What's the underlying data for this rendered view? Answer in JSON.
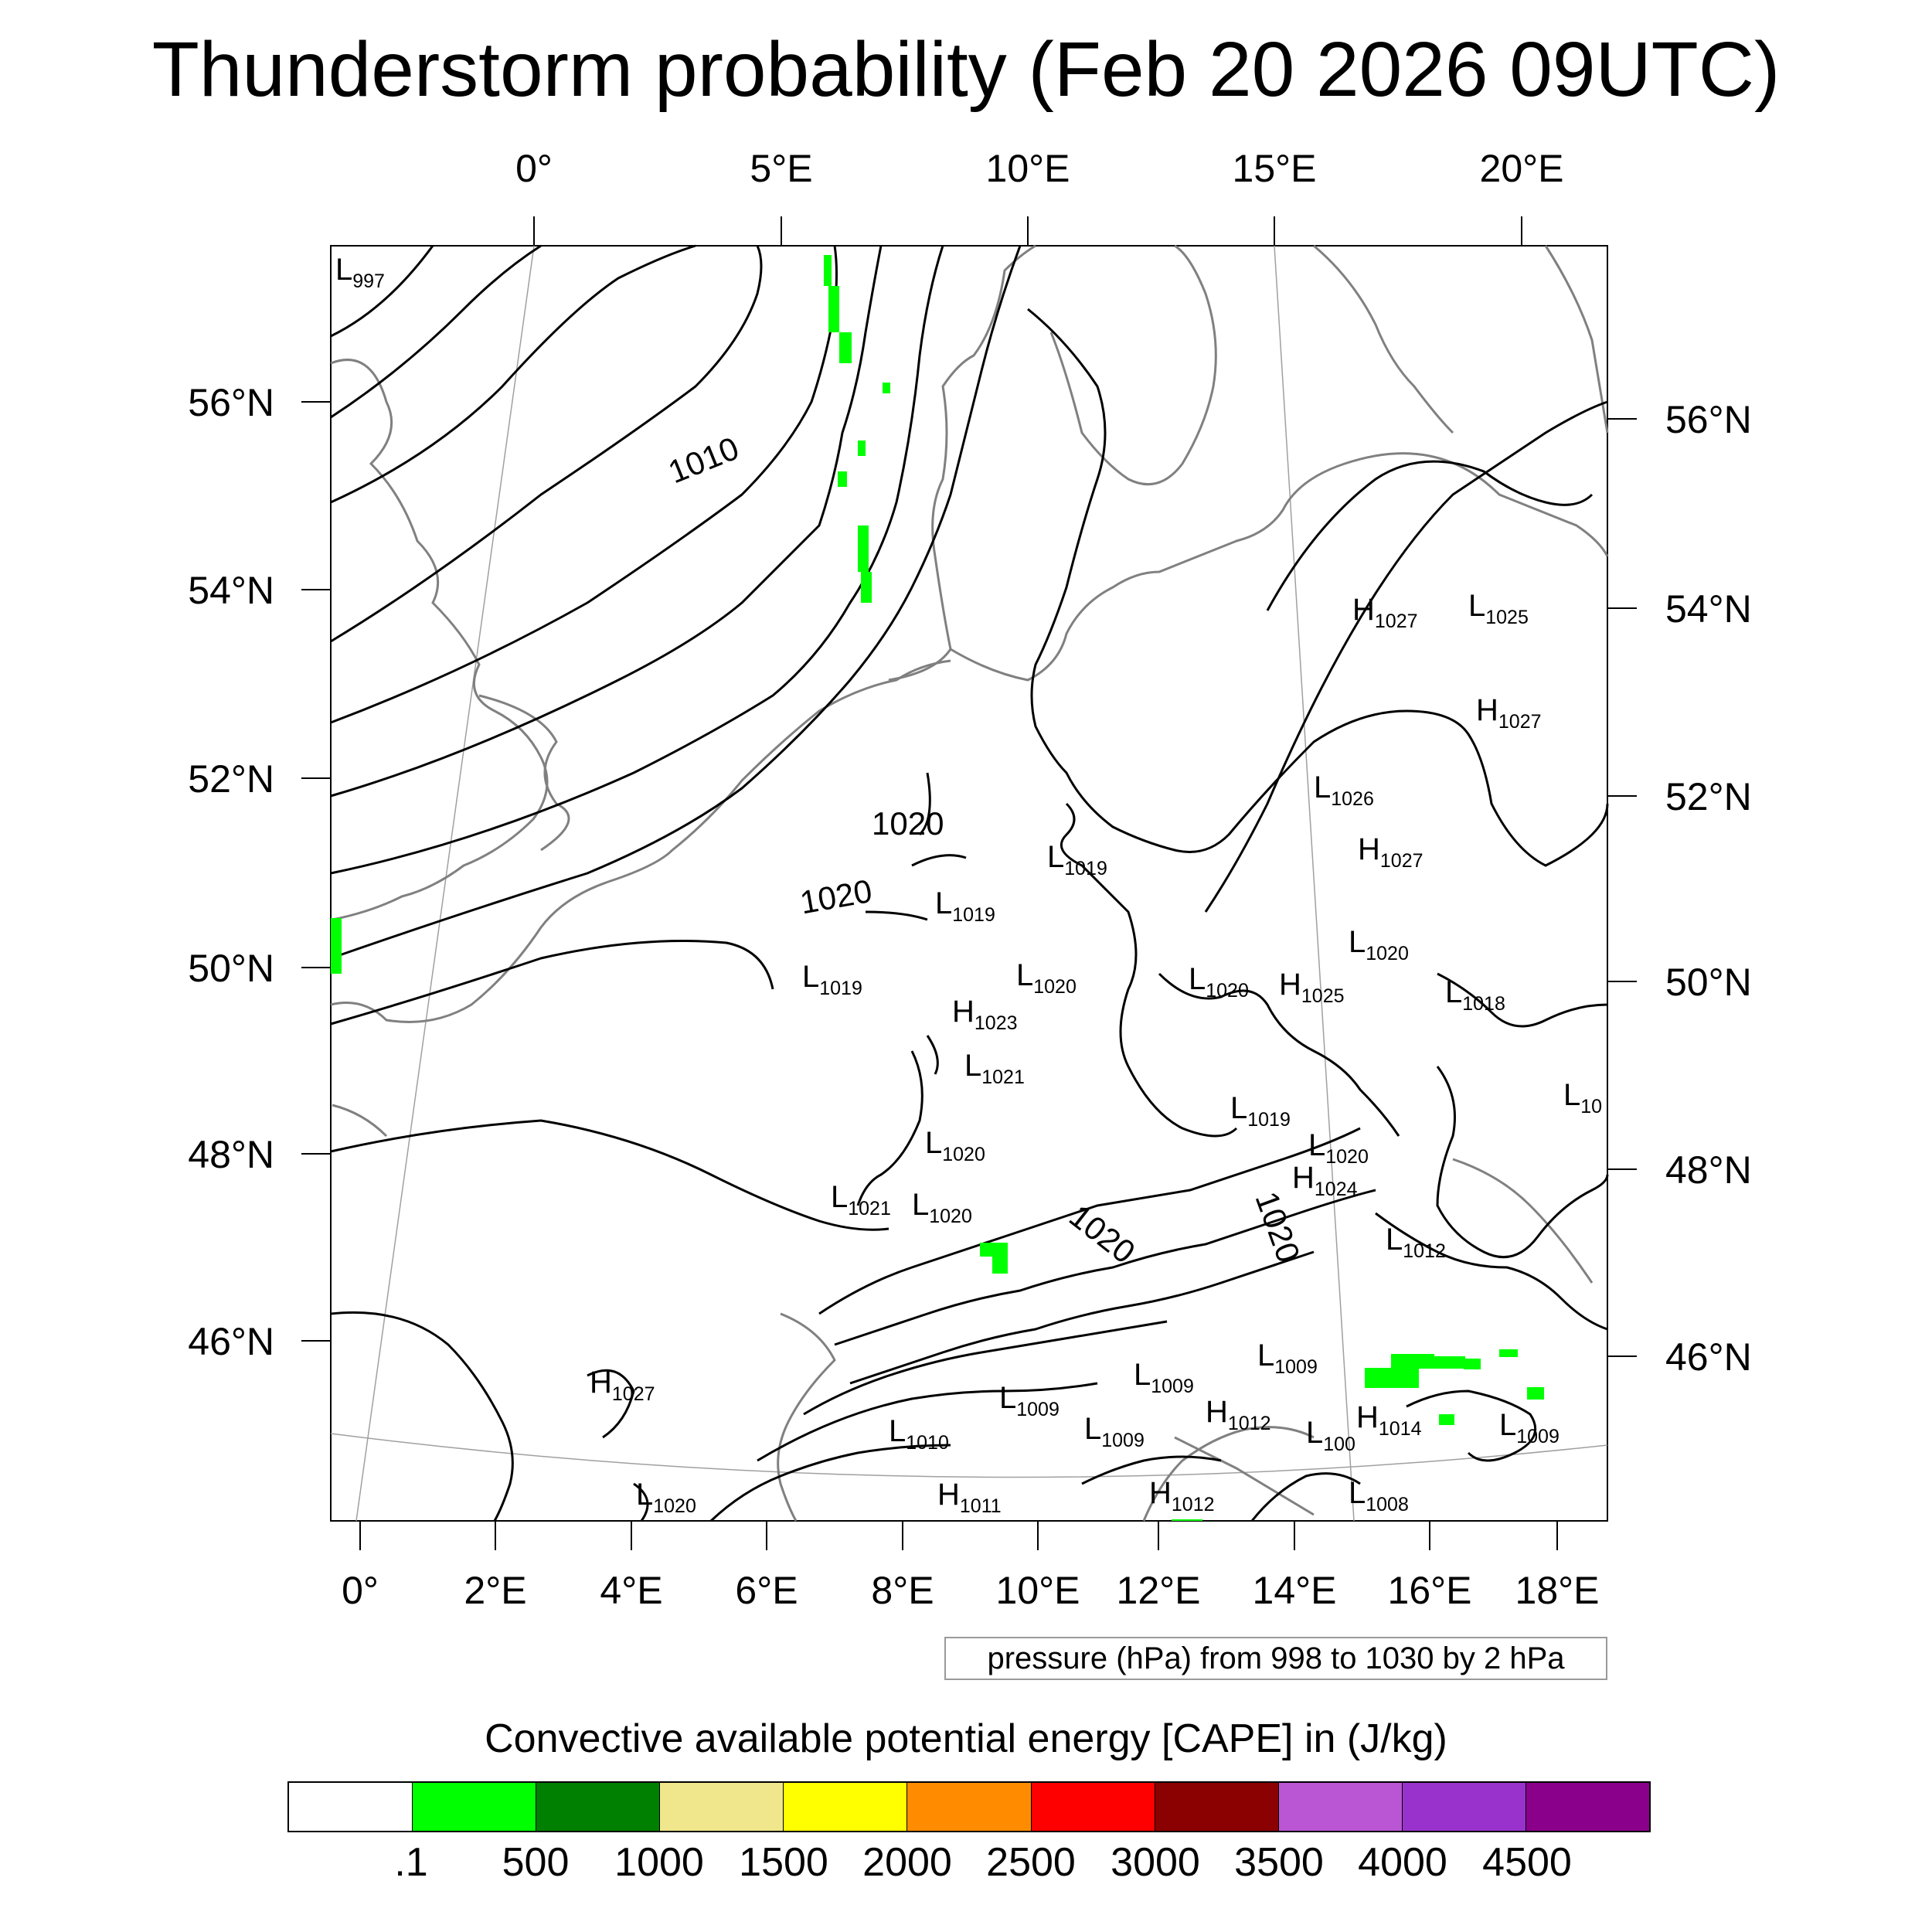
{
  "title": "Thunderstorm probability (Feb 20 2026 09UTC)",
  "top_lon_labels": [
    "0°",
    "5°E",
    "10°E",
    "15°E",
    "20°E"
  ],
  "bottom_lon_labels": [
    "0°",
    "2°E",
    "4°E",
    "6°E",
    "8°E",
    "10°E",
    "12°E",
    "14°E",
    "16°E",
    "18°E"
  ],
  "left_lat_labels": [
    "56°N",
    "54°N",
    "52°N",
    "50°N",
    "48°N",
    "46°N"
  ],
  "right_lat_labels": [
    "56°N",
    "54°N",
    "52°N",
    "50°N",
    "48°N",
    "46°N"
  ],
  "contour_labels": [
    "1010",
    "1020",
    "1020",
    "1020",
    "1020"
  ],
  "pressure_centers": [
    {
      "type": "L",
      "value": "997"
    },
    {
      "type": "H",
      "value": "1027"
    },
    {
      "type": "L",
      "value": "1025"
    },
    {
      "type": "H",
      "value": "1027"
    },
    {
      "type": "L",
      "value": "1026"
    },
    {
      "type": "H",
      "value": "1027"
    },
    {
      "type": "L",
      "value": "1019"
    },
    {
      "type": "L",
      "value": "1019"
    },
    {
      "type": "L",
      "value": "1020"
    },
    {
      "type": "L",
      "value": "1019"
    },
    {
      "type": "L",
      "value": "1020"
    },
    {
      "type": "L",
      "value": "1020"
    },
    {
      "type": "H",
      "value": "1025"
    },
    {
      "type": "L",
      "value": "1018"
    },
    {
      "type": "H",
      "value": "1023"
    },
    {
      "type": "L",
      "value": "1021"
    },
    {
      "type": "L",
      "value": "10"
    },
    {
      "type": "L",
      "value": "1019"
    },
    {
      "type": "L",
      "value": "1020"
    },
    {
      "type": "L",
      "value": "1020"
    },
    {
      "type": "H",
      "value": "1024"
    },
    {
      "type": "L",
      "value": "1021"
    },
    {
      "type": "L",
      "value": "1020"
    },
    {
      "type": "L",
      "value": "1012"
    },
    {
      "type": "H",
      "value": "1027"
    },
    {
      "type": "L",
      "value": "1009"
    },
    {
      "type": "L",
      "value": "1009"
    },
    {
      "type": "L",
      "value": "1009"
    },
    {
      "type": "L",
      "value": "1010"
    },
    {
      "type": "L",
      "value": "1009"
    },
    {
      "type": "H",
      "value": "1012"
    },
    {
      "type": "L",
      "value": "100"
    },
    {
      "type": "H",
      "value": "1014"
    },
    {
      "type": "L",
      "value": "1009"
    },
    {
      "type": "L",
      "value": "1020"
    },
    {
      "type": "H",
      "value": "1011"
    },
    {
      "type": "H",
      "value": "1012"
    },
    {
      "type": "L",
      "value": "1008"
    }
  ],
  "contour_note": "pressure (hPa) from 998 to 1030 by 2 hPa",
  "legend": {
    "title": "Convective available potential energy [CAPE] in (J/kg)",
    "colors": [
      "#ffffff",
      "#00ff00",
      "#008000",
      "#f0e68c",
      "#ffff00",
      "#ff8c00",
      "#ff0000",
      "#8b0000",
      "#ba55d3",
      "#9932cc",
      "#8b008b"
    ],
    "ticks": [
      ".1",
      "500",
      "1000",
      "1500",
      "2000",
      "2500",
      "3000",
      "3500",
      "4000",
      "4500"
    ]
  },
  "colors": {
    "cape_green": "#00ff00",
    "coastline": "#808080",
    "isobar": "#000000"
  }
}
